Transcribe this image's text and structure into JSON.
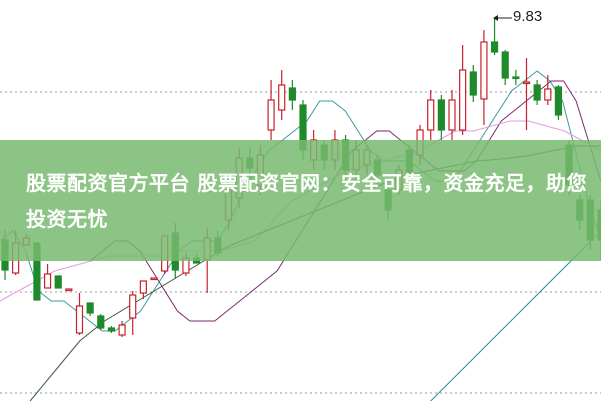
{
  "banner": {
    "title": "股票配资官方平台 股票配资官网：安全可靠，资金充足，助您投资无忧"
  },
  "chart_data": {
    "type": "candlestick",
    "title": "",
    "high_label": "9.83",
    "colors": {
      "up": "#c8202a",
      "down": "#1e8a2a",
      "ma5": "#3c9aa0",
      "ma10": "#7a2a6a",
      "ma20": "#e59ae5",
      "ma30": "#3a5a3a",
      "ma60": "#2a8a9a",
      "grid": "#999999"
    },
    "grid": "dotted horizontal",
    "candles": [
      {
        "o": 7.61,
        "c": 7.31,
        "h": 7.71,
        "l": 7.21
      },
      {
        "o": 7.28,
        "c": 7.58,
        "h": 7.71,
        "l": 7.26
      },
      {
        "o": 7.56,
        "c": 7.63,
        "h": 7.67,
        "l": 7.56
      },
      {
        "o": 7.58,
        "c": 7.01,
        "h": 7.58,
        "l": 7.01
      },
      {
        "o": 7.13,
        "c": 7.27,
        "h": 7.37,
        "l": 7.13
      },
      {
        "o": 7.25,
        "c": 7.13,
        "h": 7.25,
        "l": 7.13
      },
      {
        "o": 7.11,
        "c": 7.12,
        "h": 7.12,
        "l": 7.11
      },
      {
        "o": 6.68,
        "c": 6.95,
        "h": 7.08,
        "l": 6.66
      },
      {
        "o": 6.98,
        "c": 6.88,
        "h": 6.98,
        "l": 6.85
      },
      {
        "o": 6.85,
        "c": 6.73,
        "h": 6.87,
        "l": 6.71
      },
      {
        "o": 6.73,
        "c": 6.7,
        "h": 6.75,
        "l": 6.68
      },
      {
        "o": 6.66,
        "c": 6.76,
        "h": 6.8,
        "l": 6.64
      },
      {
        "o": 6.83,
        "c": 7.06,
        "h": 7.1,
        "l": 6.66
      },
      {
        "o": 7.08,
        "c": 7.2,
        "h": 7.2,
        "l": 7.02
      },
      {
        "o": 7.22,
        "c": 7.23,
        "h": 7.23,
        "l": 7.22
      },
      {
        "o": 7.3,
        "c": 7.65,
        "h": 7.65,
        "l": 7.27
      },
      {
        "o": 7.68,
        "c": 7.31,
        "h": 7.78,
        "l": 7.22
      },
      {
        "o": 7.28,
        "c": 7.43,
        "h": 7.48,
        "l": 7.25
      },
      {
        "o": 7.43,
        "c": 7.38,
        "h": 7.48,
        "l": 7.38
      },
      {
        "o": 7.41,
        "c": 7.63,
        "h": 7.73,
        "l": 7.08
      },
      {
        "o": 7.63,
        "c": 7.48,
        "h": 7.7,
        "l": 7.45
      },
      {
        "o": 7.81,
        "c": 8.11,
        "h": 8.21,
        "l": 7.71
      },
      {
        "o": 8.03,
        "c": 8.43,
        "h": 8.53,
        "l": 7.93
      },
      {
        "o": 8.43,
        "c": 8.33,
        "h": 8.53,
        "l": 8.23
      },
      {
        "o": 8.16,
        "c": 8.46,
        "h": 8.56,
        "l": 8.06
      },
      {
        "o": 8.71,
        "c": 9.01,
        "h": 9.21,
        "l": 8.61
      },
      {
        "o": 8.91,
        "c": 9.16,
        "h": 9.31,
        "l": 8.81
      },
      {
        "o": 9.13,
        "c": 9.01,
        "h": 9.21,
        "l": 8.91
      },
      {
        "o": 8.96,
        "c": 8.51,
        "h": 9.01,
        "l": 8.41
      },
      {
        "o": 8.41,
        "c": 8.61,
        "h": 8.71,
        "l": 8.31
      },
      {
        "o": 8.56,
        "c": 8.41,
        "h": 8.61,
        "l": 8.31
      },
      {
        "o": 8.41,
        "c": 8.61,
        "h": 8.71,
        "l": 8.31
      },
      {
        "o": 8.61,
        "c": 8.31,
        "h": 8.66,
        "l": 8.21
      },
      {
        "o": 8.31,
        "c": 8.51,
        "h": 8.61,
        "l": 8.21
      },
      {
        "o": 8.36,
        "c": 8.51,
        "h": 8.56,
        "l": 8.26
      },
      {
        "o": 8.41,
        "c": 8.26,
        "h": 8.46,
        "l": 8.16
      },
      {
        "o": 8.11,
        "c": 7.91,
        "h": 8.16,
        "l": 7.81
      },
      {
        "o": 8.11,
        "c": 8.31,
        "h": 8.36,
        "l": 8.06
      },
      {
        "o": 8.51,
        "c": 8.26,
        "h": 8.56,
        "l": 8.21
      },
      {
        "o": 8.46,
        "c": 8.71,
        "h": 8.76,
        "l": 8.36
      },
      {
        "o": 8.71,
        "c": 9.01,
        "h": 9.11,
        "l": 8.61
      },
      {
        "o": 9.01,
        "c": 8.71,
        "h": 9.06,
        "l": 8.61
      },
      {
        "o": 8.71,
        "c": 9.01,
        "h": 9.11,
        "l": 8.61
      },
      {
        "o": 8.71,
        "c": 9.31,
        "h": 9.56,
        "l": 8.66
      },
      {
        "o": 9.29,
        "c": 9.06,
        "h": 9.36,
        "l": 8.99
      },
      {
        "o": 9.02,
        "c": 9.59,
        "h": 9.71,
        "l": 8.76
      },
      {
        "o": 9.59,
        "c": 9.49,
        "h": 9.83,
        "l": 9.46
      },
      {
        "o": 9.49,
        "c": 9.23,
        "h": 9.51,
        "l": 9.16
      },
      {
        "o": 9.24,
        "c": 9.23,
        "h": 9.31,
        "l": 9.16
      },
      {
        "o": 9.18,
        "c": 9.19,
        "h": 9.43,
        "l": 8.71
      },
      {
        "o": 9.16,
        "c": 9.01,
        "h": 9.21,
        "l": 8.96
      },
      {
        "o": 9.01,
        "c": 9.12,
        "h": 9.26,
        "l": 8.96
      },
      {
        "o": 9.14,
        "c": 8.86,
        "h": 9.16,
        "l": 8.81
      },
      {
        "o": 8.56,
        "c": 8.16,
        "h": 8.61,
        "l": 8.06
      },
      {
        "o": 8.01,
        "c": 7.81,
        "h": 8.06,
        "l": 7.71
      },
      {
        "o": 8.01,
        "c": 7.61,
        "h": 8.06,
        "l": 7.51
      },
      {
        "o": 7.91,
        "c": 7.61,
        "h": 8.01,
        "l": 7.41
      }
    ],
    "moving_averages": [
      {
        "key": "ma5",
        "values": [
          7.6,
          7.7,
          7.5,
          7.1,
          7.0,
          7.0,
          6.9,
          6.8,
          6.7,
          6.7,
          6.8,
          6.9,
          7.1,
          7.3,
          7.5,
          7.6,
          7.6,
          7.6,
          7.8,
          8.1,
          8.3,
          8.5,
          8.6,
          8.7,
          8.8,
          9.0,
          9.0,
          8.9,
          8.7,
          8.5,
          8.4,
          8.4,
          8.4,
          8.3,
          8.2,
          8.2,
          8.3,
          8.5,
          8.7,
          8.9,
          9.1,
          9.2,
          9.3,
          9.2,
          9.0,
          8.5,
          8.0,
          7.6
        ]
      },
      {
        "key": "ma10",
        "values": [
          7.4,
          7.5,
          7.6,
          7.6,
          7.5,
          7.3,
          7.1,
          6.9,
          6.8,
          6.8,
          6.8,
          6.9,
          7.0,
          7.1,
          7.2,
          7.3,
          7.5,
          7.7,
          7.9,
          8.1,
          8.3,
          8.5,
          8.6,
          8.7,
          8.7,
          8.6,
          8.5,
          8.4,
          8.3,
          8.3,
          8.3,
          8.4,
          8.6,
          8.8,
          8.9,
          9.0,
          9.1,
          9.2,
          9.2,
          9.0,
          8.6,
          8.2
        ]
      },
      {
        "key": "ma20",
        "values": [
          7.0,
          7.1,
          7.2,
          7.3,
          7.35,
          7.4,
          7.45,
          7.45,
          7.45,
          7.45,
          7.5,
          7.5,
          7.5,
          7.55,
          7.6,
          7.8,
          8.0,
          8.1,
          8.2,
          8.3,
          8.35,
          8.4,
          8.45,
          8.5,
          8.6,
          8.7,
          8.7,
          8.75,
          8.8,
          8.8,
          8.75,
          8.7,
          8.6,
          8.5
        ]
      },
      {
        "key": "ma30",
        "values": [
          6.0,
          6.3,
          6.6,
          6.8,
          6.95,
          7.1,
          7.25,
          7.4,
          7.55,
          7.65,
          7.75,
          7.85,
          7.95,
          8.05,
          8.15,
          8.25,
          8.3,
          8.35,
          8.4,
          8.42,
          8.45,
          8.5,
          8.55,
          8.55
        ]
      },
      {
        "key": "ma60",
        "values": [
          5.9,
          6.1,
          6.3,
          6.5,
          6.7,
          6.9,
          7.1,
          7.3,
          7.5,
          7.7
        ]
      }
    ]
  }
}
